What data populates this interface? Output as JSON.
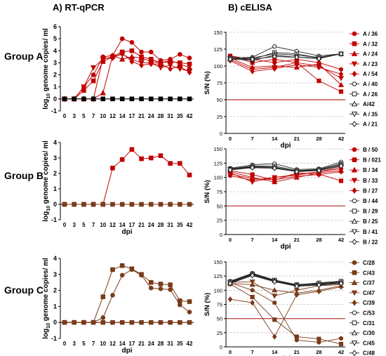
{
  "headers": {
    "left": "A) RT-qPCR",
    "right": "B) cELISA"
  },
  "groups": [
    "Group A",
    "Group B",
    "Group C"
  ],
  "chart_data": [
    {
      "id": "rt-qpcr-group-a",
      "type": "line",
      "ylabel": "log10 genome copies/ ml",
      "xlabel": "",
      "x": [
        0,
        3,
        5,
        7,
        10,
        12,
        14,
        17,
        21,
        24,
        28,
        31,
        35,
        42
      ],
      "ylim": [
        -1,
        6
      ],
      "yticks": [
        -1,
        0,
        1,
        2,
        3,
        4,
        5,
        6
      ],
      "series": [
        {
          "color": "#c00000",
          "marker": "circle",
          "values": [
            0,
            0,
            1,
            2,
            3.5,
            3.6,
            5,
            4.7,
            3.9,
            3.9,
            3.2,
            3.3,
            3.7,
            3.4
          ]
        },
        {
          "color": "#c00000",
          "marker": "square",
          "values": [
            0,
            0,
            0.7,
            1.5,
            3.1,
            3.5,
            3.9,
            4.0,
            3.5,
            3.3,
            3.0,
            3.1,
            3.0,
            2.9
          ]
        },
        {
          "color": "#c00000",
          "marker": "triangle",
          "values": [
            0,
            0,
            0,
            0,
            0.5,
            3.6,
            3.3,
            3.5,
            3.4,
            3.1,
            3.0,
            3.2,
            2.9,
            2.6
          ]
        },
        {
          "color": "#c00000",
          "marker": "triangle-down",
          "values": [
            0,
            0,
            1,
            2.6,
            3.3,
            3.5,
            3.7,
            3.3,
            3.0,
            3.0,
            2.6,
            2.8,
            2.5,
            2.3
          ]
        },
        {
          "color": "#c00000",
          "marker": "diamond",
          "values": [
            0,
            0,
            0,
            0,
            3.4,
            3.4,
            3.8,
            3.1,
            2.8,
            2.9,
            2.9,
            2.5,
            2.7,
            2.2
          ]
        },
        {
          "color": "#000000",
          "marker": "square",
          "values": [
            0,
            0,
            0,
            0,
            0,
            0,
            0,
            0,
            0,
            0,
            0,
            0,
            0,
            0
          ]
        }
      ]
    },
    {
      "id": "cel-group-a",
      "type": "line",
      "ylabel": "S/N (%)",
      "xlabel": "dpi",
      "x": [
        0,
        7,
        14,
        21,
        28,
        42
      ],
      "ylim": [
        0,
        150
      ],
      "yticks": [
        0,
        25,
        50,
        75,
        100,
        125,
        150
      ],
      "threshold": 50,
      "legend": [
        "A / 36",
        "A / 32",
        "A / 24",
        "A / 23",
        "A / 54",
        "A / 40",
        "A / 26",
        "A/42",
        "A / 35",
        "A / 21"
      ],
      "series": [
        {
          "name": "A / 36",
          "color": "#c00000",
          "marker": "circle",
          "filled": true,
          "values": [
            115,
            110,
            105,
            110,
            105,
            95
          ]
        },
        {
          "name": "A / 32",
          "color": "#c00000",
          "marker": "square",
          "filled": true,
          "values": [
            115,
            105,
            110,
            105,
            78,
            62
          ]
        },
        {
          "name": "A / 24",
          "color": "#c00000",
          "marker": "triangle",
          "filled": true,
          "values": [
            112,
            98,
            100,
            98,
            103,
            72
          ]
        },
        {
          "name": "A / 23",
          "color": "#c00000",
          "marker": "triangle-down",
          "filled": true,
          "values": [
            110,
            95,
            98,
            105,
            100,
            82
          ]
        },
        {
          "name": "A / 54",
          "color": "#c00000",
          "marker": "diamond",
          "filled": true,
          "values": [
            108,
            92,
            96,
            102,
            98,
            88
          ]
        },
        {
          "name": "A / 40",
          "color": "#222222",
          "marker": "circle",
          "filled": false,
          "values": [
            112,
            113,
            129,
            122,
            115,
            118
          ]
        },
        {
          "name": "A / 26",
          "color": "#222222",
          "marker": "square",
          "filled": false,
          "values": [
            112,
            110,
            120,
            118,
            112,
            118
          ]
        },
        {
          "name": "A/42",
          "color": "#222222",
          "marker": "triangle",
          "filled": false,
          "values": [
            110,
            112,
            118,
            116,
            113,
            118
          ]
        },
        {
          "name": "A / 35",
          "color": "#222222",
          "marker": "triangle-down",
          "filled": false,
          "values": [
            111,
            108,
            116,
            113,
            112,
            118
          ]
        },
        {
          "name": "A / 21",
          "color": "#222222",
          "marker": "diamond",
          "filled": false,
          "values": [
            110,
            110,
            114,
            113,
            111,
            118
          ]
        }
      ]
    },
    {
      "id": "rt-qpcr-group-b",
      "type": "line",
      "ylabel": "log10 genome copies/ ml",
      "xlabel": "dpi",
      "x": [
        0,
        3,
        5,
        7,
        10,
        12,
        14,
        17,
        21,
        24,
        28,
        31,
        35,
        42
      ],
      "ylim": [
        -1,
        4
      ],
      "yticks": [
        -1,
        0,
        1,
        2,
        3,
        4
      ],
      "series": [
        {
          "color": "#c00000",
          "marker": "square",
          "values": [
            0,
            0,
            0,
            0,
            0,
            2.35,
            2.9,
            3.55,
            2.95,
            3.0,
            3.15,
            2.65,
            2.65,
            1.9
          ]
        },
        {
          "color": "#7a3b1a",
          "marker": "square",
          "values": [
            0,
            0,
            0,
            0,
            0,
            0,
            0,
            0,
            0,
            0,
            0,
            0,
            0,
            0
          ]
        }
      ]
    },
    {
      "id": "cel-group-b",
      "type": "line",
      "ylabel": "S/N (%)",
      "xlabel": "dpi",
      "x": [
        0,
        7,
        14,
        21,
        28,
        42
      ],
      "ylim": [
        0,
        150
      ],
      "yticks": [
        0,
        25,
        50,
        75,
        100,
        125,
        150
      ],
      "threshold": 50,
      "legend": [
        "B / 50",
        "B / 021",
        "B / 34",
        "B / 33",
        "B / 27",
        "B / 44",
        "B / 29",
        "B / 25",
        "B / 41",
        "B / 22"
      ],
      "series": [
        {
          "name": "B / 50",
          "color": "#c00000",
          "marker": "circle",
          "filled": true,
          "values": [
            103,
            95,
            100,
            105,
            110,
            115
          ]
        },
        {
          "name": "B / 021",
          "color": "#c00000",
          "marker": "square",
          "filled": true,
          "values": [
            112,
            105,
            95,
            108,
            106,
            94
          ]
        },
        {
          "name": "B / 34",
          "color": "#c00000",
          "marker": "triangle",
          "filled": true,
          "values": [
            110,
            100,
            92,
            100,
            108,
            112
          ]
        },
        {
          "name": "B / 33",
          "color": "#c00000",
          "marker": "triangle-down",
          "filled": true,
          "values": [
            108,
            92,
            100,
            104,
            110,
            118
          ]
        },
        {
          "name": "B / 27",
          "color": "#c00000",
          "marker": "diamond",
          "filled": true,
          "values": [
            106,
            98,
            96,
            102,
            105,
            110
          ]
        },
        {
          "name": "B / 44",
          "color": "#222222",
          "marker": "circle",
          "filled": false,
          "values": [
            116,
            122,
            124,
            114,
            115,
            127
          ]
        },
        {
          "name": "B / 29",
          "color": "#222222",
          "marker": "square",
          "filled": false,
          "values": [
            115,
            120,
            120,
            112,
            114,
            124
          ]
        },
        {
          "name": "B / 25",
          "color": "#222222",
          "marker": "triangle",
          "filled": false,
          "values": [
            114,
            119,
            118,
            111,
            113,
            123
          ]
        },
        {
          "name": "B / 41",
          "color": "#222222",
          "marker": "triangle-down",
          "filled": false,
          "values": [
            114,
            118,
            117,
            111,
            112,
            121
          ]
        },
        {
          "name": "B / 22",
          "color": "#222222",
          "marker": "diamond",
          "filled": false,
          "values": [
            113,
            117,
            116,
            110,
            112,
            120
          ]
        }
      ]
    },
    {
      "id": "rt-qpcr-group-c",
      "type": "line",
      "ylabel": "log10 genome copies/ ml",
      "xlabel": "dpi",
      "x": [
        0,
        3,
        5,
        7,
        10,
        12,
        14,
        17,
        21,
        24,
        28,
        31,
        35,
        42
      ],
      "ylim": [
        -1,
        4
      ],
      "yticks": [
        -1,
        0,
        1,
        2,
        3,
        4
      ],
      "series": [
        {
          "color": "#7a3b1a",
          "marker": "square",
          "values": [
            0,
            0,
            0,
            0,
            1.6,
            3.3,
            3.55,
            3.35,
            3.0,
            2.5,
            2.4,
            2.35,
            1.35,
            1.3
          ]
        },
        {
          "color": "#7a3b1a",
          "marker": "circle",
          "values": [
            0,
            0,
            0,
            0,
            0.3,
            1.7,
            2.95,
            3.3,
            2.95,
            2.15,
            2.1,
            2.05,
            1.1,
            0.65
          ]
        },
        {
          "color": "#7a3b1a",
          "marker": "square",
          "values": [
            0,
            0,
            0,
            0,
            0,
            0,
            0,
            0,
            0,
            0,
            0,
            0,
            0,
            0
          ]
        }
      ]
    },
    {
      "id": "cel-group-c",
      "type": "line",
      "ylabel": "S/N (%)",
      "xlabel": "dpi",
      "x": [
        0,
        7,
        14,
        21,
        28,
        42
      ],
      "ylim": [
        0,
        150
      ],
      "yticks": [
        0,
        25,
        50,
        75,
        100,
        125,
        150
      ],
      "threshold": 50,
      "legend": [
        "C/28",
        "C/43",
        "C/37",
        "C/47",
        "C/39",
        "C/53",
        "C/31",
        "C/30",
        "C/45",
        "C/48"
      ],
      "series": [
        {
          "name": "C/28",
          "color": "#7a3b1a",
          "marker": "circle",
          "filled": true,
          "values": [
            113,
            100,
            78,
            12,
            8,
            15
          ]
        },
        {
          "name": "C/43",
          "color": "#7a3b1a",
          "marker": "square",
          "filled": true,
          "values": [
            111,
            88,
            48,
            18,
            14,
            5
          ]
        },
        {
          "name": "C/37",
          "color": "#7a3b1a",
          "marker": "triangle",
          "filled": true,
          "values": [
            112,
            110,
            100,
            95,
            100,
            108
          ]
        },
        {
          "name": "C/47",
          "color": "#7a3b1a",
          "marker": "triangle-down",
          "filled": true,
          "values": [
            114,
            115,
            90,
            100,
            108,
            110
          ]
        },
        {
          "name": "C/39",
          "color": "#7a3b1a",
          "marker": "diamond",
          "filled": true,
          "values": [
            84,
            78,
            18,
            92,
            98,
            106
          ]
        },
        {
          "name": "C/53",
          "color": "#222222",
          "marker": "circle",
          "filled": false,
          "values": [
            116,
            130,
            118,
            108,
            112,
            115
          ]
        },
        {
          "name": "C/31",
          "color": "#222222",
          "marker": "square",
          "filled": false,
          "values": [
            115,
            129,
            118,
            110,
            113,
            116
          ]
        },
        {
          "name": "C/30",
          "color": "#222222",
          "marker": "triangle",
          "filled": false,
          "values": [
            114,
            128,
            117,
            109,
            111,
            114
          ]
        },
        {
          "name": "C/45",
          "color": "#222222",
          "marker": "triangle-down",
          "filled": false,
          "values": [
            113,
            127,
            116,
            108,
            110,
            113
          ]
        },
        {
          "name": "C/48",
          "color": "#222222",
          "marker": "diamond",
          "filled": false,
          "values": [
            112,
            126,
            115,
            107,
            109,
            112
          ]
        }
      ]
    }
  ]
}
